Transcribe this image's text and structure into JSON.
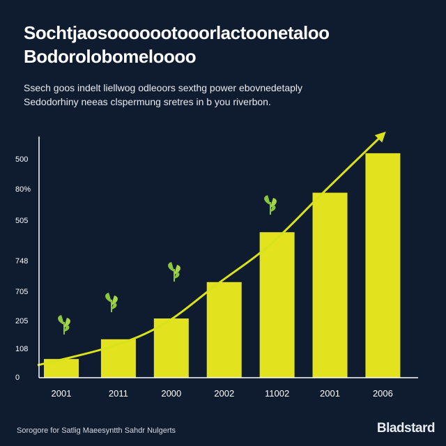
{
  "header": {
    "title_line1": "Sochtjaosooooootooorlactoonetaloo",
    "title_line2": "Bodorolobomeloooo",
    "subtitle_line1": "Ssech goos indelt liellwog odleoors sexthg power ebovnedetaply",
    "subtitle_line2": "Sedodorhiny neeas clspermung sretres in b you riverbon."
  },
  "footer": {
    "source": "Sorogore for Satlig Maeesyntth Sahdr Nulgerts",
    "brand": "Bladstard"
  },
  "colors": {
    "background": "#0f1b2e",
    "bar": "#e2e21e",
    "trend": "#d9e21a",
    "axis": "#ffffff",
    "leaf": "#8cc63f"
  },
  "chart_data": {
    "type": "bar",
    "categories": [
      "2001",
      "2011",
      "2000",
      "2002",
      "11002",
      "2001",
      "2006"
    ],
    "y_tick_labels": [
      "0",
      "108",
      "205",
      "705",
      "748",
      "505",
      "80%",
      "500"
    ],
    "values": [
      0.9,
      1.85,
      2.85,
      4.6,
      7.0,
      8.9,
      10.8
    ],
    "trend_line": [
      0.6,
      1.5,
      2.6,
      4.5,
      6.4,
      8.9,
      11.7
    ],
    "ylim": [
      0,
      11.6
    ],
    "grid": false,
    "legend": "none"
  }
}
